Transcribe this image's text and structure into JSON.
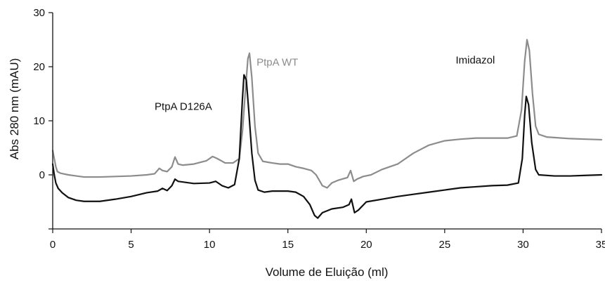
{
  "chart_data": {
    "type": "line",
    "xlabel": "Volume de Eluição (ml)",
    "ylabel": "Abs 280 nm (mAU)",
    "xlim": [
      0,
      35
    ],
    "ylim": [
      -10,
      30
    ],
    "x_ticks": [
      "0",
      "5",
      "10",
      "15",
      "20",
      "25",
      "30",
      "35"
    ],
    "y_ticks": [
      "0",
      "10",
      "20",
      "30"
    ],
    "grid": false,
    "series": [
      {
        "name": "PtpA WT",
        "color": "#8c8c8c",
        "points": [
          [
            0,
            4.5
          ],
          [
            0.1,
            3
          ],
          [
            0.2,
            1.5
          ],
          [
            0.3,
            0.6
          ],
          [
            0.5,
            0.3
          ],
          [
            1,
            0
          ],
          [
            1.5,
            -0.2
          ],
          [
            2,
            -0.4
          ],
          [
            3,
            -0.4
          ],
          [
            4,
            -0.3
          ],
          [
            5,
            -0.2
          ],
          [
            6,
            0
          ],
          [
            6.5,
            0.2
          ],
          [
            6.8,
            1.2
          ],
          [
            7.0,
            0.8
          ],
          [
            7.3,
            0.6
          ],
          [
            7.6,
            1.5
          ],
          [
            7.8,
            3.3
          ],
          [
            8.0,
            2.0
          ],
          [
            8.3,
            1.8
          ],
          [
            9.0,
            2.0
          ],
          [
            9.8,
            2.6
          ],
          [
            10.2,
            3.4
          ],
          [
            10.5,
            3.0
          ],
          [
            11.0,
            2.2
          ],
          [
            11.5,
            2.2
          ],
          [
            11.9,
            3.0
          ],
          [
            12.1,
            8
          ],
          [
            12.3,
            16
          ],
          [
            12.45,
            21.5
          ],
          [
            12.55,
            22.5
          ],
          [
            12.7,
            18
          ],
          [
            12.9,
            9
          ],
          [
            13.1,
            4
          ],
          [
            13.4,
            2.5
          ],
          [
            14.0,
            2.2
          ],
          [
            14.5,
            2.0
          ],
          [
            15.0,
            2.0
          ],
          [
            15.5,
            1.5
          ],
          [
            16.0,
            1.2
          ],
          [
            16.5,
            0.8
          ],
          [
            16.8,
            0
          ],
          [
            17.2,
            -2.0
          ],
          [
            17.5,
            -2.4
          ],
          [
            17.8,
            -1.5
          ],
          [
            18.2,
            -1.0
          ],
          [
            18.8,
            -0.5
          ],
          [
            19.0,
            0.8
          ],
          [
            19.2,
            -1.2
          ],
          [
            19.4,
            -0.8
          ],
          [
            19.8,
            -0.3
          ],
          [
            20.3,
            0
          ],
          [
            21.0,
            1.0
          ],
          [
            22.0,
            2.0
          ],
          [
            23.0,
            4.0
          ],
          [
            24.0,
            5.5
          ],
          [
            25.0,
            6.3
          ],
          [
            26.0,
            6.6
          ],
          [
            27.0,
            6.8
          ],
          [
            28.0,
            6.8
          ],
          [
            29.0,
            6.8
          ],
          [
            29.6,
            7.2
          ],
          [
            29.9,
            12
          ],
          [
            30.1,
            21
          ],
          [
            30.25,
            25
          ],
          [
            30.4,
            23
          ],
          [
            30.6,
            15
          ],
          [
            30.8,
            9
          ],
          [
            31.0,
            7.5
          ],
          [
            31.5,
            7.0
          ],
          [
            32,
            6.9
          ],
          [
            33,
            6.7
          ],
          [
            34,
            6.6
          ],
          [
            35,
            6.5
          ]
        ]
      },
      {
        "name": "PtpA D126A",
        "color": "#111111",
        "points": [
          [
            0,
            2.0
          ],
          [
            0.1,
            0
          ],
          [
            0.2,
            -1.5
          ],
          [
            0.35,
            -2.5
          ],
          [
            0.6,
            -3.3
          ],
          [
            1.0,
            -4.2
          ],
          [
            1.5,
            -4.7
          ],
          [
            2.0,
            -4.9
          ],
          [
            3.0,
            -4.9
          ],
          [
            4.0,
            -4.5
          ],
          [
            5.0,
            -4.0
          ],
          [
            6.0,
            -3.3
          ],
          [
            6.7,
            -3.0
          ],
          [
            7.0,
            -2.5
          ],
          [
            7.3,
            -2.9
          ],
          [
            7.6,
            -2.0
          ],
          [
            7.8,
            -0.8
          ],
          [
            8.0,
            -1.2
          ],
          [
            9.0,
            -1.6
          ],
          [
            10.0,
            -1.5
          ],
          [
            10.4,
            -1.2
          ],
          [
            10.8,
            -2.0
          ],
          [
            11.2,
            -2.4
          ],
          [
            11.6,
            -1.8
          ],
          [
            11.9,
            3
          ],
          [
            12.1,
            14
          ],
          [
            12.2,
            18.5
          ],
          [
            12.35,
            17.5
          ],
          [
            12.5,
            12
          ],
          [
            12.7,
            4
          ],
          [
            12.9,
            -1.0
          ],
          [
            13.1,
            -2.8
          ],
          [
            13.5,
            -3.2
          ],
          [
            14.0,
            -3.0
          ],
          [
            15.0,
            -3.0
          ],
          [
            15.5,
            -3.2
          ],
          [
            16.0,
            -4.0
          ],
          [
            16.4,
            -5.5
          ],
          [
            16.7,
            -7.5
          ],
          [
            16.9,
            -8.0
          ],
          [
            17.2,
            -7.0
          ],
          [
            17.8,
            -6.3
          ],
          [
            18.5,
            -6.0
          ],
          [
            18.9,
            -5.5
          ],
          [
            19.05,
            -4.5
          ],
          [
            19.25,
            -7.0
          ],
          [
            19.5,
            -6.5
          ],
          [
            20.0,
            -5.0
          ],
          [
            21.0,
            -4.5
          ],
          [
            22.0,
            -4.0
          ],
          [
            23.0,
            -3.6
          ],
          [
            24.0,
            -3.2
          ],
          [
            25.0,
            -2.8
          ],
          [
            26.0,
            -2.4
          ],
          [
            27.0,
            -2.2
          ],
          [
            28.0,
            -2.0
          ],
          [
            29.0,
            -1.9
          ],
          [
            29.7,
            -1.5
          ],
          [
            29.95,
            3
          ],
          [
            30.1,
            11
          ],
          [
            30.2,
            14.5
          ],
          [
            30.35,
            13
          ],
          [
            30.55,
            6
          ],
          [
            30.8,
            1.0
          ],
          [
            31.0,
            0
          ],
          [
            32,
            -0.2
          ],
          [
            33,
            -0.2
          ],
          [
            34,
            -0.1
          ],
          [
            35,
            0
          ]
        ]
      }
    ],
    "annotations": [
      {
        "text": "PtpA WT",
        "x": 13.0,
        "y": 20.2,
        "color": "#8c8c8c"
      },
      {
        "text": "PtpA D126A",
        "x": 6.5,
        "y": 12.0,
        "color": "#111111"
      },
      {
        "text": "Imidazol",
        "x": 25.7,
        "y": 20.6,
        "color": "#111111"
      }
    ]
  }
}
